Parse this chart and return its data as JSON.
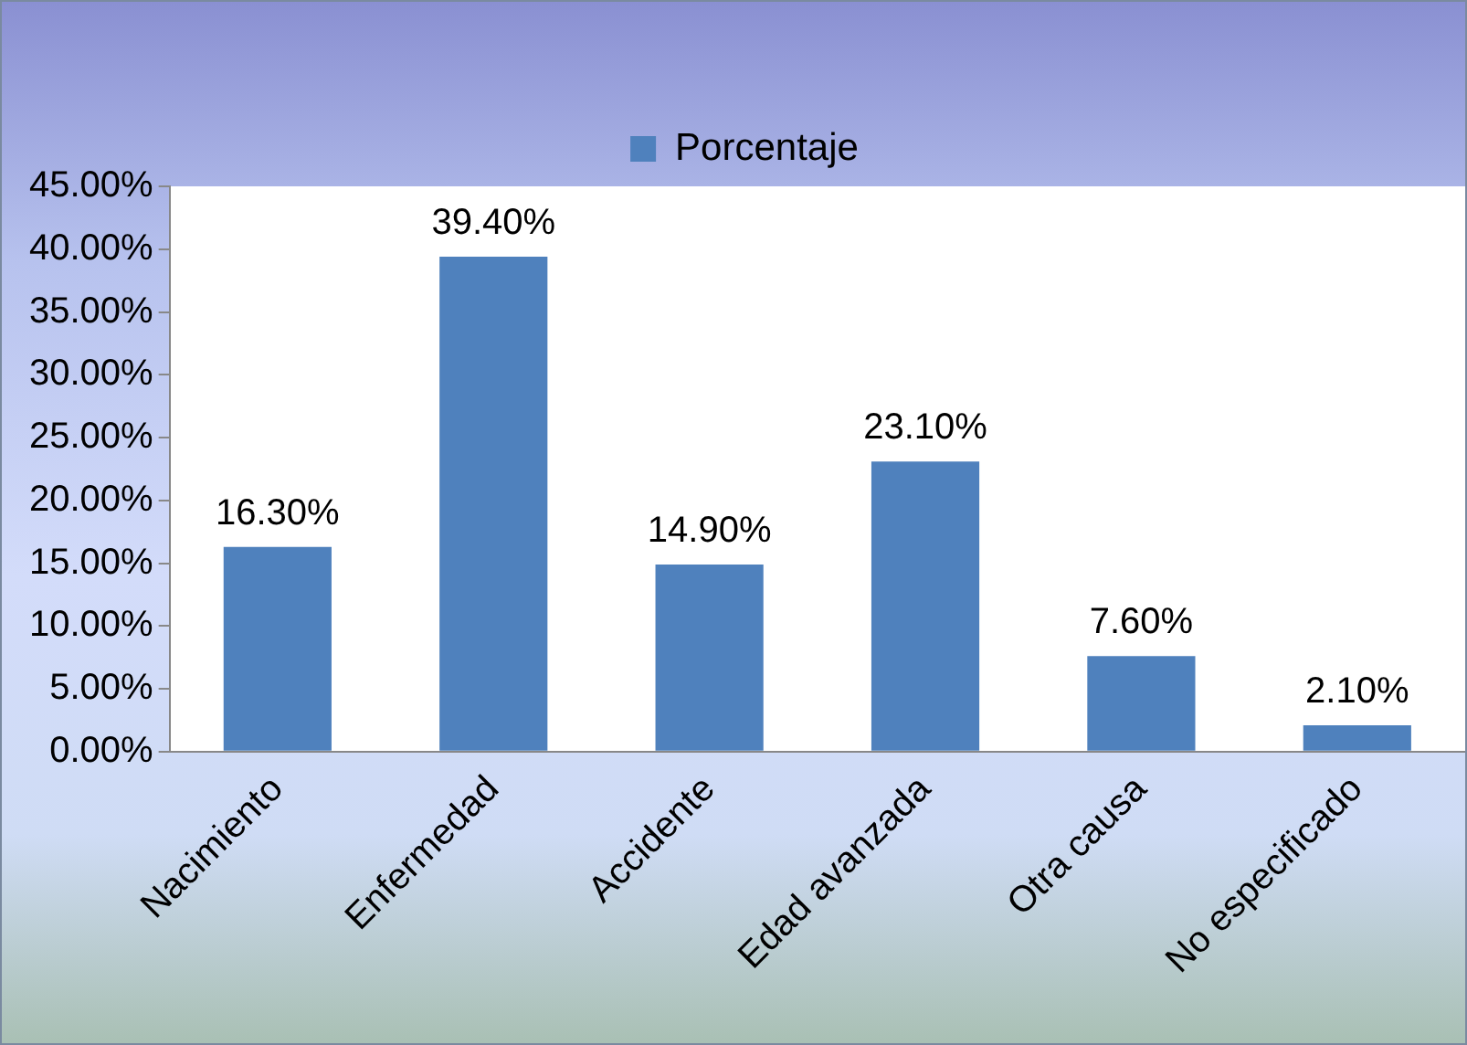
{
  "chart_data": {
    "type": "bar",
    "categories": [
      "Nacimiento",
      "Enfermedad",
      "Accidente",
      "Edad avanzada",
      "Otra causa",
      "No especificado"
    ],
    "series": [
      {
        "name": "Porcentaje",
        "color": "#4f81bd",
        "values": [
          16.3,
          39.4,
          14.9,
          23.1,
          7.6,
          2.1
        ],
        "value_labels": [
          "16.30%",
          "39.40%",
          "14.90%",
          "23.10%",
          "7.60%",
          "2.10%"
        ]
      }
    ],
    "ylim": [
      0,
      45
    ],
    "yticks": [
      {
        "value": 0,
        "label": "0.00%"
      },
      {
        "value": 5,
        "label": "5.00%"
      },
      {
        "value": 10,
        "label": "10.00%"
      },
      {
        "value": 15,
        "label": "15.00%"
      },
      {
        "value": 20,
        "label": "20.00%"
      },
      {
        "value": 25,
        "label": "25.00%"
      },
      {
        "value": 30,
        "label": "30.00%"
      },
      {
        "value": 35,
        "label": "35.00%"
      },
      {
        "value": 40,
        "label": "40.00%"
      },
      {
        "value": 45,
        "label": "45.00%"
      }
    ],
    "grid": false,
    "legend": "top"
  }
}
